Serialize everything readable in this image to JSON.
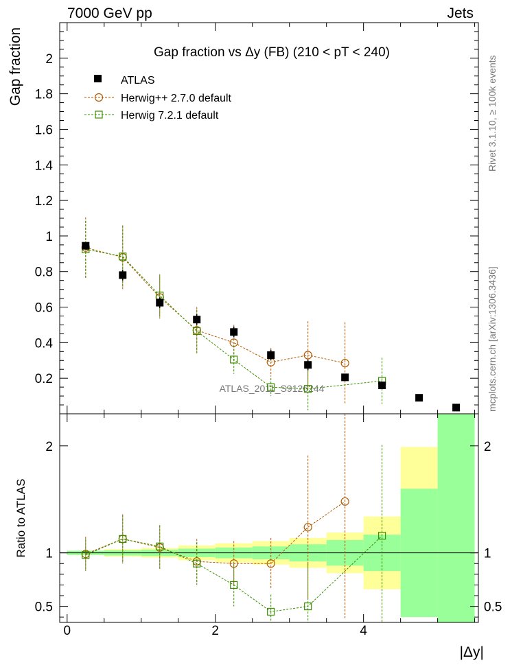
{
  "header": {
    "left": "7000 GeV pp",
    "right": "Jets"
  },
  "side_labels": {
    "rivet": "Rivet 3.1.10, ≥ 100k events",
    "mcplots": "mcplots.cern.ch [arXiv:1306.3436]"
  },
  "watermark": "ATLAS_2011_S9126244",
  "chart_data": [
    {
      "type": "scatter",
      "panel": "main",
      "title": "Gap fraction vs  Δy (FB) (210 < pT < 240)",
      "ylabel": "Gap fraction",
      "xlim": [
        -0.1,
        5.55
      ],
      "ylim": [
        0,
        2.2
      ],
      "xticks": [
        0,
        2,
        4
      ],
      "yticks": [
        0.2,
        0.4,
        0.6,
        0.8,
        1,
        1.2,
        1.4,
        1.6,
        1.8,
        2
      ],
      "ytick_labels": [
        "0.2",
        "0.4",
        "0.6",
        "0.8",
        "1",
        "1.2",
        "1.4",
        "1.6",
        "1.8",
        "2"
      ],
      "legend_position": "top-left",
      "series": [
        {
          "name": "ATLAS",
          "color": "#000000",
          "marker": "filled-square",
          "x": [
            0.25,
            0.75,
            1.25,
            1.75,
            2.25,
            2.75,
            3.25,
            3.75,
            4.25,
            4.75,
            5.25
          ],
          "y": [
            0.945,
            0.78,
            0.625,
            0.53,
            0.46,
            0.33,
            0.275,
            0.205,
            0.16,
            0.09,
            0.035
          ],
          "yerr": [
            0.02,
            0.03,
            0.03,
            0.03,
            0.03,
            0.03,
            0.03,
            0.02,
            0.02,
            0.01,
            0.01
          ]
        },
        {
          "name": "Herwig++ 2.7.0 default",
          "color": "#b35900",
          "marker": "open-circle",
          "x": [
            0.25,
            0.75,
            1.25,
            1.75,
            2.25,
            2.75,
            3.25,
            3.75
          ],
          "y": [
            0.935,
            0.88,
            0.655,
            0.47,
            0.4,
            0.29,
            0.33,
            0.285
          ],
          "yerr": [
            0.17,
            0.18,
            0.12,
            0.13,
            0.1,
            0.08,
            0.19,
            0.23
          ]
        },
        {
          "name": "Herwig 7.2.1 default",
          "color": "#3a8f00",
          "marker": "open-square",
          "x": [
            0.25,
            0.75,
            1.25,
            1.75,
            2.25,
            2.75,
            3.25,
            4.25
          ],
          "y": [
            0.925,
            0.885,
            0.665,
            0.465,
            0.305,
            0.15,
            0.14,
            0.185
          ],
          "yerr": [
            0.16,
            0.17,
            0.12,
            0.12,
            0.08,
            0.05,
            0.12,
            0.13
          ]
        }
      ]
    },
    {
      "type": "scatter",
      "panel": "ratio",
      "ylabel": "Ratio to ATLAS",
      "xlabel": "|Δy|",
      "xlim": [
        -0.1,
        5.55
      ],
      "ylim": [
        0.35,
        2.3
      ],
      "xticks": [
        0,
        2,
        4
      ],
      "xtick_labels": [
        "0",
        "2",
        "4"
      ],
      "yticks": [
        0.5,
        1,
        2
      ],
      "ytick_labels": [
        "0.5",
        "1",
        "2"
      ],
      "bands": {
        "edges": [
          0,
          0.5,
          1,
          1.5,
          2,
          2.5,
          3,
          3.5,
          4,
          4.5,
          5,
          5.5
        ],
        "green": [
          [
            0.98,
            1.02
          ],
          [
            0.975,
            1.025
          ],
          [
            0.97,
            1.03
          ],
          [
            0.96,
            1.04
          ],
          [
            0.95,
            1.05
          ],
          [
            0.94,
            1.06
          ],
          [
            0.92,
            1.08
          ],
          [
            0.88,
            1.12
          ],
          [
            0.83,
            1.17
          ],
          [
            0.4,
            1.6
          ],
          [
            0.35,
            2.3
          ]
        ],
        "yellow": [
          [
            0.98,
            1.02
          ],
          [
            0.965,
            1.035
          ],
          [
            0.955,
            1.045
          ],
          [
            0.93,
            1.07
          ],
          [
            0.91,
            1.09
          ],
          [
            0.89,
            1.11
          ],
          [
            0.86,
            1.14
          ],
          [
            0.81,
            1.19
          ],
          [
            0.66,
            1.34
          ],
          [
            0.62,
            1.99
          ],
          [
            0.35,
            2.3
          ]
        ]
      },
      "series": [
        {
          "name": "Herwig++ 2.7.0 default",
          "color": "#b35900",
          "marker": "open-circle",
          "x": [
            0.25,
            0.75,
            1.25,
            1.75,
            2.25,
            2.75,
            3.25,
            3.75
          ],
          "y": [
            0.99,
            1.13,
            1.05,
            0.92,
            0.9,
            0.9,
            1.24,
            1.48
          ],
          "yerr": [
            0.16,
            0.23,
            0.2,
            0.21,
            0.21,
            0.24,
            0.67,
            1.1
          ]
        },
        {
          "name": "Herwig 7.2.1 default",
          "color": "#3a8f00",
          "marker": "open-square",
          "x": [
            0.25,
            0.75,
            1.25,
            1.75,
            2.25,
            2.75,
            3.25,
            4.25
          ],
          "y": [
            0.98,
            1.13,
            1.06,
            0.9,
            0.7,
            0.45,
            0.5,
            1.16
          ],
          "yerr": [
            0.15,
            0.22,
            0.2,
            0.2,
            0.2,
            0.16,
            0.4,
            0.85
          ]
        }
      ]
    }
  ]
}
